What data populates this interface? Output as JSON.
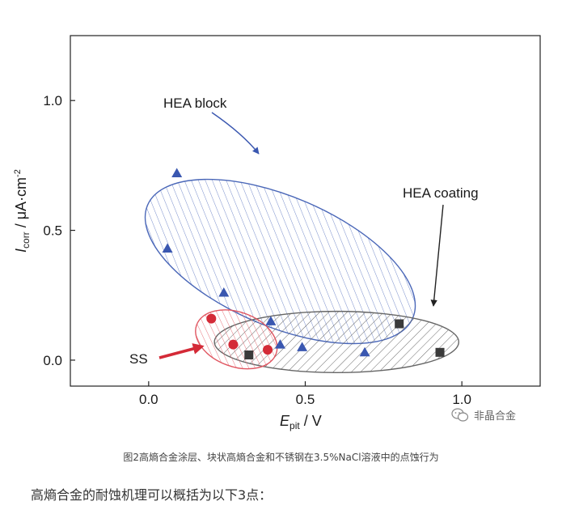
{
  "chart_data": {
    "type": "scatter",
    "xlim": [
      -0.25,
      1.25
    ],
    "ylim": [
      -0.1,
      1.25
    ],
    "x_ticks": [
      0.0,
      0.5,
      1.0
    ],
    "y_ticks": [
      0.0,
      0.5,
      1.0
    ],
    "x_tick_labels": [
      "0.0",
      "0.5",
      "1.0"
    ],
    "y_tick_labels": [
      "0.0",
      "0.5",
      "1.0"
    ],
    "xlabel": {
      "main": "E",
      "sub": "pit",
      "unit": " / V"
    },
    "ylabel": {
      "main": "I",
      "sub": "corr",
      "unit": " / μA·cm",
      "sup": "-2"
    },
    "grid": false,
    "series": [
      {
        "name": "HEA block",
        "marker": "triangle",
        "color": "#3a57b0",
        "points": [
          [
            0.09,
            0.72
          ],
          [
            0.06,
            0.43
          ],
          [
            0.24,
            0.26
          ],
          [
            0.39,
            0.15
          ],
          [
            0.42,
            0.06
          ],
          [
            0.49,
            0.05
          ],
          [
            0.69,
            0.03
          ]
        ],
        "region": {
          "cx": 0.42,
          "cy": 0.38,
          "rx": 0.46,
          "ry": 0.25,
          "angle_deg": 23,
          "stroke": "#4a67b8",
          "hatch": "back"
        }
      },
      {
        "name": "HEA coating",
        "marker": "square",
        "color": "#3a3a3a",
        "points": [
          [
            0.8,
            0.14
          ],
          [
            0.93,
            0.03
          ],
          [
            0.32,
            0.02
          ]
        ],
        "region": {
          "cx": 0.6,
          "cy": 0.07,
          "rx": 0.39,
          "ry": 0.118,
          "angle_deg": 0,
          "stroke": "#666666",
          "hatch": "fwd"
        }
      },
      {
        "name": "SS",
        "marker": "circle",
        "color": "#d42a37",
        "points": [
          [
            0.2,
            0.16
          ],
          [
            0.27,
            0.06
          ],
          [
            0.38,
            0.04
          ]
        ],
        "region": {
          "cx": 0.28,
          "cy": 0.08,
          "rx": 0.135,
          "ry": 0.105,
          "angle_deg": 20,
          "stroke": "#e05560",
          "hatch": "back"
        }
      }
    ],
    "annotations": [
      {
        "text": "HEA block"
      },
      {
        "text": "HEA coating"
      },
      {
        "text": "SS"
      }
    ]
  },
  "caption": "图2高熵合金涂层、块状高熵合金和不锈钢在3.5%NaCl溶液中的点蚀行为",
  "watermark": {
    "text": "非晶合金",
    "icon": "wechat-icon"
  },
  "body_text": "高熵合金的耐蚀机理可以概括为以下3点："
}
